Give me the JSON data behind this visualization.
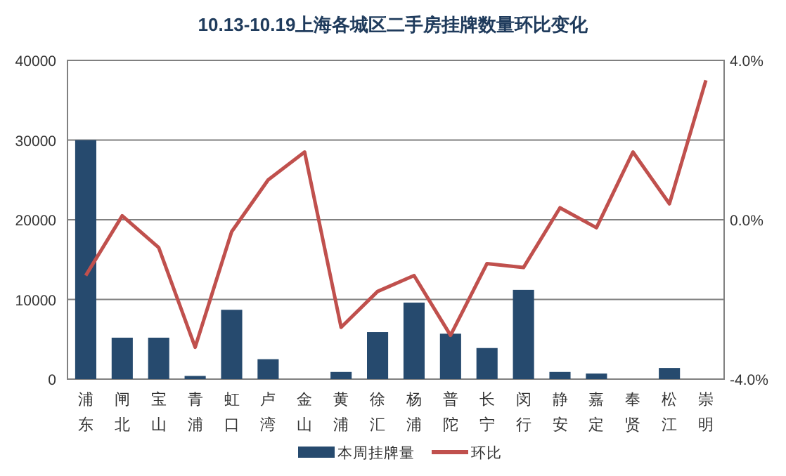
{
  "chart_data": {
    "type": "bar",
    "title": "10.13-10.19上海各城区二手房挂牌数量环比变化",
    "categories": [
      "浦东",
      "闸北",
      "宝山",
      "青浦",
      "虹口",
      "卢湾",
      "金山",
      "黄浦",
      "徐汇",
      "杨浦",
      "普陀",
      "长宁",
      "闵行",
      "静安",
      "嘉定",
      "奉贤",
      "松江",
      "崇明"
    ],
    "series": [
      {
        "name": "本周挂牌量",
        "color": "#264a6e",
        "values": [
          30000,
          5200,
          5200,
          400,
          8700,
          2500,
          0,
          900,
          5900,
          9600,
          5700,
          3900,
          11200,
          900,
          700,
          0,
          1400,
          0
        ]
      },
      {
        "name": "环比",
        "type": "line",
        "axis": "y2",
        "color": "#c0504d",
        "values": [
          -1.4,
          0.1,
          -0.7,
          -3.2,
          -0.3,
          1.0,
          1.7,
          -2.7,
          -1.8,
          -1.4,
          -2.9,
          -1.1,
          -1.2,
          0.3,
          -0.2,
          1.7,
          0.4,
          3.5
        ]
      }
    ],
    "ylim": [
      0,
      40000
    ],
    "yticks": [
      0,
      10000,
      20000,
      30000,
      40000
    ],
    "y2lim": [
      -4,
      4
    ],
    "y2ticks": [
      {
        "value": -4,
        "label": "-4.0%"
      },
      {
        "value": 0,
        "label": "0.0%"
      },
      {
        "value": 4,
        "label": "4.0%"
      }
    ],
    "grid": "y",
    "legend": "bottom",
    "marker": "none",
    "line_style": "solid"
  }
}
